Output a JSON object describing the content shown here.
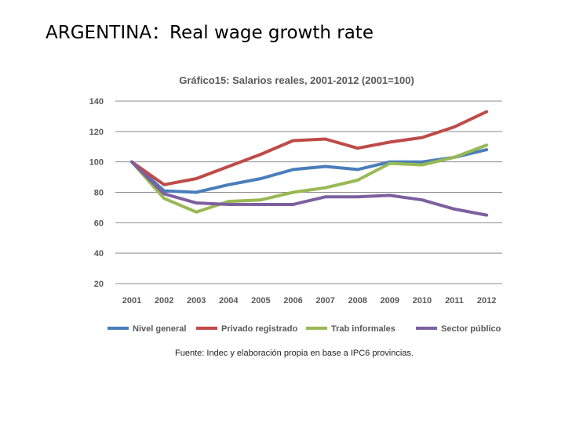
{
  "slide": {
    "title": "ARGENTINA：Real wage growth rate"
  },
  "chart_data": {
    "type": "line",
    "title": "Gráfico15: Salarios reales, 2001-2012  (2001=100)",
    "categories": [
      "2001",
      "2002",
      "2003",
      "2004",
      "2005",
      "2006",
      "2007",
      "2008",
      "2009",
      "2010",
      "2011",
      "2012"
    ],
    "yticks": [
      20,
      40,
      60,
      80,
      100,
      120,
      140
    ],
    "ylim": [
      20,
      140
    ],
    "grid": true,
    "legend_position": "bottom",
    "source": "Fuente: Indec y elaboración propia en base a IPC6 provincias.",
    "series": [
      {
        "name": "Nivel general",
        "color": "#4a7ebb",
        "values": [
          100,
          81,
          80,
          85,
          89,
          95,
          97,
          95,
          100,
          100,
          103,
          108
        ]
      },
      {
        "name": "Privado registrado",
        "color": "#be4b48",
        "values": [
          100,
          85,
          89,
          97,
          105,
          114,
          115,
          109,
          113,
          116,
          123,
          133
        ]
      },
      {
        "name": "Trab informales",
        "color": "#98b954",
        "values": [
          100,
          76,
          67,
          74,
          75,
          80,
          83,
          88,
          99,
          98,
          103,
          111
        ]
      },
      {
        "name": "Sector público",
        "color": "#7d60a0",
        "values": [
          100,
          79,
          73,
          72,
          72,
          72,
          77,
          77,
          78,
          75,
          69,
          65
        ]
      }
    ]
  }
}
